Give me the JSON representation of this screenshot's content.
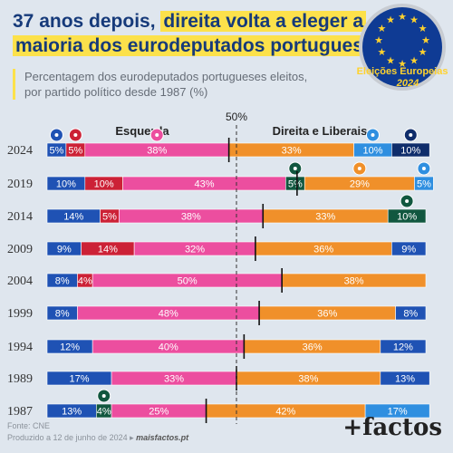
{
  "header": {
    "title_line1_plain": "37 anos depois,",
    "title_line1_highlight": "direita volta a eleger a",
    "title_line2_highlight": "maioria dos eurodeputados portugueses",
    "subtitle_line1": "Percentagem dos eurodeputados portugueses eleitos,",
    "subtitle_line2": "por partido político desde 1987 (%)"
  },
  "badge": {
    "line1": "Eleições Europeias",
    "line2": "2024",
    "colors": {
      "background": "#0f3b94",
      "stars": "#ffd22e",
      "text": "#ffd22e",
      "ring": "#c8ccd2"
    }
  },
  "footer": {
    "source": "Fonte: CNE",
    "produced": "Produzido a 12 de junho de 2024 ▸",
    "site": "maisfactos.pt",
    "brand": "+factos"
  },
  "chart_data": {
    "type": "bar",
    "stacked": true,
    "orientation": "horizontal",
    "left_group_label": "Esquerda",
    "right_group_label": "Direita e Liberais",
    "midline_label": "50%",
    "colors": {
      "blue": "#1f52b4",
      "red": "#cc2136",
      "pink": "#ec4e9f",
      "orange": "#f0902a",
      "sky": "#2f8fe0",
      "dark": "#0f2d6b",
      "green": "#11573f"
    },
    "rows": [
      {
        "year": "2024",
        "split": 48,
        "segments": [
          {
            "value": 5,
            "color": "blue",
            "label": "5%"
          },
          {
            "value": 5,
            "color": "red",
            "label": "5%"
          },
          {
            "value": 38,
            "color": "pink",
            "label": "38%"
          },
          {
            "value": 33,
            "color": "orange",
            "label": "33%"
          },
          {
            "value": 10,
            "color": "sky",
            "label": "10%"
          },
          {
            "value": 10,
            "color": "dark",
            "label": "10%"
          }
        ]
      },
      {
        "year": "2019",
        "split": 66,
        "segments": [
          {
            "value": 10,
            "color": "blue",
            "label": "10%"
          },
          {
            "value": 10,
            "color": "red",
            "label": "10%"
          },
          {
            "value": 43,
            "color": "pink",
            "label": "43%"
          },
          {
            "value": 5,
            "color": "green",
            "label": "5%"
          },
          {
            "value": 29,
            "color": "orange",
            "label": "29%"
          },
          {
            "value": 5,
            "color": "sky",
            "label": "5%"
          }
        ]
      },
      {
        "year": "2014",
        "split": 57,
        "segments": [
          {
            "value": 14,
            "color": "blue",
            "label": "14%"
          },
          {
            "value": 5,
            "color": "red",
            "label": "5%"
          },
          {
            "value": 38,
            "color": "pink",
            "label": "38%"
          },
          {
            "value": 33,
            "color": "orange",
            "label": "33%"
          },
          {
            "value": 10,
            "color": "green",
            "label": "10%"
          }
        ]
      },
      {
        "year": "2009",
        "split": 55,
        "segments": [
          {
            "value": 9,
            "color": "blue",
            "label": "9%"
          },
          {
            "value": 14,
            "color": "red",
            "label": "14%"
          },
          {
            "value": 32,
            "color": "pink",
            "label": "32%"
          },
          {
            "value": 36,
            "color": "orange",
            "label": "36%"
          },
          {
            "value": 9,
            "color": "blue",
            "label": "9%"
          }
        ]
      },
      {
        "year": "2004",
        "split": 62,
        "segments": [
          {
            "value": 8,
            "color": "blue",
            "label": "8%"
          },
          {
            "value": 4,
            "color": "red",
            "label": "4%"
          },
          {
            "value": 50,
            "color": "pink",
            "label": "50%"
          },
          {
            "value": 38,
            "color": "orange",
            "label": "38%"
          }
        ]
      },
      {
        "year": "1999",
        "split": 56,
        "segments": [
          {
            "value": 8,
            "color": "blue",
            "label": "8%"
          },
          {
            "value": 48,
            "color": "pink",
            "label": "48%"
          },
          {
            "value": 36,
            "color": "orange",
            "label": "36%"
          },
          {
            "value": 8,
            "color": "blue",
            "label": "8%"
          }
        ]
      },
      {
        "year": "1994",
        "split": 52,
        "segments": [
          {
            "value": 12,
            "color": "blue",
            "label": "12%"
          },
          {
            "value": 40,
            "color": "pink",
            "label": "40%"
          },
          {
            "value": 36,
            "color": "orange",
            "label": "36%"
          },
          {
            "value": 12,
            "color": "blue",
            "label": "12%"
          }
        ]
      },
      {
        "year": "1989",
        "split": 50,
        "segments": [
          {
            "value": 17,
            "color": "blue",
            "label": "17%"
          },
          {
            "value": 33,
            "color": "pink",
            "label": "33%"
          },
          {
            "value": 38,
            "color": "orange",
            "label": "38%"
          },
          {
            "value": 13,
            "color": "blue",
            "label": "13%"
          }
        ]
      },
      {
        "year": "1987",
        "split": 42,
        "segments": [
          {
            "value": 13,
            "color": "blue",
            "label": "13%"
          },
          {
            "value": 4,
            "color": "green",
            "label": "4%"
          },
          {
            "value": 25,
            "color": "pink",
            "label": "25%"
          },
          {
            "value": 42,
            "color": "orange",
            "label": "42%"
          },
          {
            "value": 17,
            "color": "sky",
            "label": "17%"
          }
        ]
      }
    ],
    "party_icons": [
      {
        "row": "2024",
        "segment": 0,
        "name": "be-logo-icon"
      },
      {
        "row": "2024",
        "segment": 1,
        "name": "pcp-star-icon"
      },
      {
        "row": "2024",
        "segment": 2,
        "name": "ps-fist-icon"
      },
      {
        "row": "2024",
        "segment": 4,
        "name": "il-info-icon"
      },
      {
        "row": "2024",
        "segment": 5,
        "name": "chega-logo-icon"
      },
      {
        "row": "2019",
        "segment": 3,
        "name": "pan-leaf-icon"
      },
      {
        "row": "2019",
        "segment": 4,
        "name": "psd-arrows-icon"
      },
      {
        "row": "2019",
        "segment": 5,
        "name": "cds-flag-icon"
      },
      {
        "row": "2014",
        "segment": 4,
        "name": "mpt-clover-icon"
      },
      {
        "row": "1987",
        "segment": 1,
        "name": "prd-logo-icon"
      }
    ]
  }
}
